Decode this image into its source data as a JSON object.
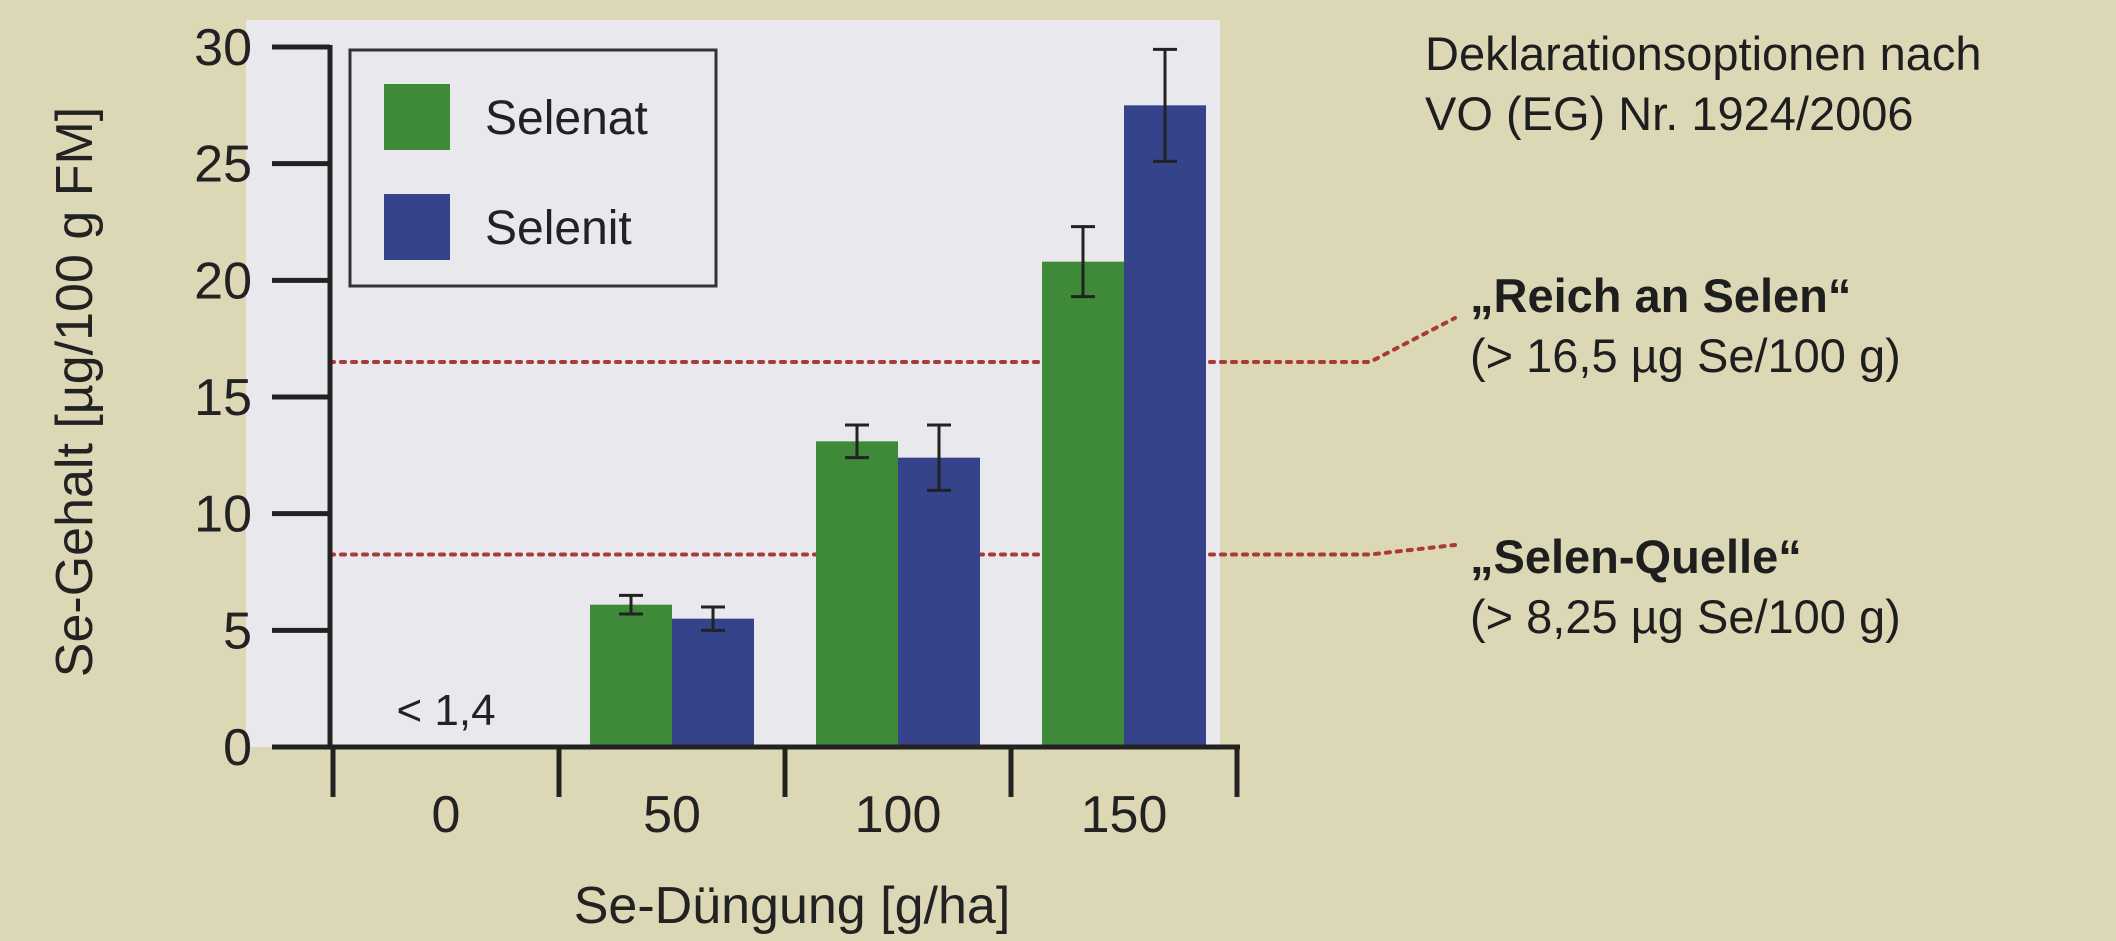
{
  "chart_data": {
    "type": "bar",
    "title": "",
    "xlabel": "Se-Düngung [g/ha]",
    "ylabel": "Se-Gehalt [µg/100 g FM]",
    "categories": [
      "0",
      "50",
      "100",
      "150"
    ],
    "series": [
      {
        "name": "Selenat",
        "color": "#3f8a38",
        "values": [
          null,
          6.1,
          13.1,
          20.8
        ],
        "errors": [
          null,
          0.4,
          0.7,
          1.5
        ]
      },
      {
        "name": "Selenit",
        "color": "#34438a",
        "values": [
          null,
          5.5,
          12.4,
          27.5
        ],
        "errors": [
          null,
          0.5,
          1.4,
          2.4
        ]
      }
    ],
    "ylim": [
      0,
      30
    ],
    "yticks": [
      0,
      5,
      10,
      15,
      20,
      25,
      30
    ],
    "grid": false,
    "legend_position": "top-left",
    "annotation_below_detection": {
      "category": "0",
      "text": "< 1,4"
    },
    "reference_lines": [
      {
        "value": 16.5,
        "color": "#a83a3a",
        "style": "dotted"
      },
      {
        "value": 8.25,
        "color": "#a83a3a",
        "style": "dotted"
      }
    ]
  },
  "declaration": {
    "heading_line1": "Deklarationsoptionen nach",
    "heading_line2": "VO (EG) Nr. 1924/2006",
    "rich_label": "„Reich an Selen“",
    "rich_threshold": "(> 16,5 µg Se/100 g)",
    "source_label": "„Selen-Quelle“",
    "source_threshold": "(> 8,25 µg Se/100 g)"
  }
}
